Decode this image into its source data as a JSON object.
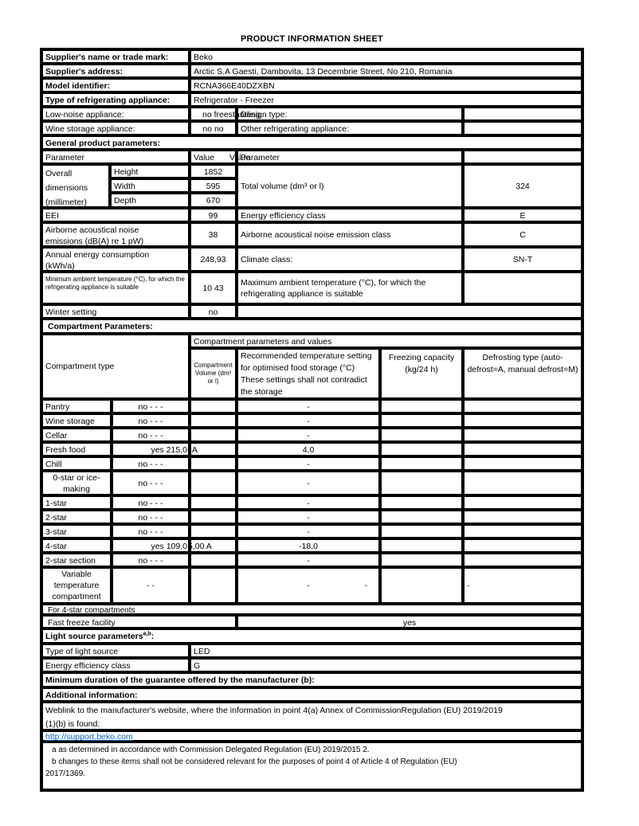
{
  "title": "PRODUCT INFORMATION SHEET",
  "supplier": {
    "name_label": "Supplier's name or trade mark:",
    "name_value": "Beko",
    "address_label": "Supplier's address:",
    "address_value": "Arctic S.A  Gaesti, Dambovita, 13 Decembrie Street, No 210, Romania",
    "model_label": "Model identifier:",
    "model_value": "RCNA366E40DZXBN",
    "type_label": "Type of refrigerating appliance:",
    "type_value": "Refrigerator - Freezer",
    "low_noise_label": "Low-noise appliance:",
    "low_noise_value": "no freestanding",
    "design_type_label": "Design type:",
    "wine_label": "Wine storage appliance:",
    "wine_value": "no no",
    "other_label": "Other refrigerating appliance:"
  },
  "general": {
    "header": "General product parameters:",
    "param_header": "Parameter",
    "value_header": "Value",
    "value2_header": "Value",
    "param2_header": "Parameter",
    "dims_label": "Overall dimensions (millimeter)",
    "height_label": "Height",
    "height_value": "1852",
    "width_label": "Width",
    "width_value": "595",
    "depth_label": "Depth",
    "depth_value": "670",
    "total_volume_label": "Total volume (dm³ or l)",
    "total_volume_value": "324",
    "eei_label": "EEI",
    "eei_value": "99",
    "energy_class_label": "Energy efficiency class",
    "energy_class_value": "E",
    "noise_label": "Airborne acoustical noise emissions (dB(A) re 1 pW)",
    "noise_value": "38",
    "noise_class_label": "Airborne acoustical noise emission class",
    "noise_class_value": "C",
    "energy_label": "Annual energy consumption (kWh/a)",
    "energy_value": "248,93",
    "climate_label": "Climate class:",
    "climate_value": "SN-T",
    "min_temp_label": "Minimum ambient temperature (°C), for which the refrigerating appliance is suitable",
    "min_temp_value": "10 43",
    "max_temp_label": "Maximum ambient temperature (°C), for which the refrigerating appliance is suitable",
    "max_temp_value": "",
    "winter_label": "Winter setting",
    "winter_value": "no"
  },
  "compartments": {
    "header": "Compartment Parameters:",
    "type_header": "Compartment type",
    "params_header": "Compartment parameters and values",
    "volume_header": "Compartment Volume (dm³ or l)",
    "temp_header": "Recommended temperature setting for optimised food storage (°C) These settings shall not contradict the storage",
    "freezing_header": "Freezing capacity (kg/24 h)",
    "defrost_header": "Defrosting type (auto-defrost=A, manual defrost=M)",
    "rows": [
      {
        "name": "Pantry",
        "val": "no -  -   -",
        "vol": "",
        "temp": "-",
        "temp2": "",
        "freeze": "",
        "defrost": ""
      },
      {
        "name": "Wine storage",
        "val": "no -  -   -",
        "vol": "",
        "temp": "-",
        "temp2": "",
        "freeze": "",
        "defrost": ""
      },
      {
        "name": "Cellar",
        "val": "no -  -   -",
        "vol": "",
        "temp": "-",
        "temp2": "",
        "freeze": "",
        "defrost": ""
      },
      {
        "name": "Fresh food",
        "val": "yes 215,0",
        "vol": "- A",
        "temp": "4,0",
        "temp2": "",
        "freeze": "",
        "defrost": ""
      },
      {
        "name": "Chill",
        "val": "no -  -   -",
        "vol": "",
        "temp": "-",
        "temp2": "",
        "freeze": "",
        "defrost": ""
      },
      {
        "name": "0-star or ice-making",
        "val": "no -  -   -",
        "vol": "",
        "temp": "-",
        "temp2": "",
        "freeze": "",
        "defrost": ""
      },
      {
        "name": "1-star",
        "val": "no -  -   -",
        "vol": "",
        "temp": "-",
        "temp2": "",
        "freeze": "",
        "defrost": ""
      },
      {
        "name": "2-star",
        "val": "no -  -   -",
        "vol": "",
        "temp": "-",
        "temp2": "",
        "freeze": "",
        "defrost": ""
      },
      {
        "name": "3-star",
        "val": "no -  -   -",
        "vol": "",
        "temp": "-",
        "temp2": "",
        "freeze": "",
        "defrost": ""
      },
      {
        "name": "4-star",
        "val": "yes 109,0",
        "vol": "5,00 A",
        "temp": "-18,0",
        "temp2": "",
        "freeze": "",
        "defrost": ""
      },
      {
        "name": "2-star section",
        "val": "no -  -   -",
        "vol": "",
        "temp": "-",
        "temp2": "",
        "freeze": "",
        "defrost": ""
      },
      {
        "name": "Variable temperature compartment",
        "val": "- -",
        "vol": "",
        "temp": "-",
        "temp2": "-",
        "freeze": "",
        "defrost": "-"
      }
    ],
    "for_4star": "For 4-star compartments",
    "fast_freeze_label": "Fast freeze facility",
    "fast_freeze_value": "yes"
  },
  "light": {
    "header": "Light source parameters",
    "header_sup": "a,b",
    "header_colon": ":",
    "type_label": "Type of light source",
    "type_value": "LED",
    "class_label": "Energy efficiency class",
    "class_value": "G"
  },
  "guarantee_header": "Minimum duration of the guarantee offered by the manufacturer (b):",
  "additional": {
    "header": "Additional information:",
    "weblink_line1": "Weblink to the manufacturer's website, where the information in point 4(a) Annex of CommissionRegulation (EU) 2019/2019",
    "weblink_line2": "(1)(b) is found:",
    "link": "http://support.beko.com",
    "footnote_a": "a as determined in accordance with Commission Delegated Regulation (EU) 2019/2015 2.",
    "footnote_b_line1": "b changes to these items shall not be considered relevant for the purposes of point 4 of Article 4 of Regulation (EU)",
    "footnote_b_line2": "2017/1369."
  },
  "colors": {
    "link": "#0563c1",
    "border": "#000000"
  }
}
